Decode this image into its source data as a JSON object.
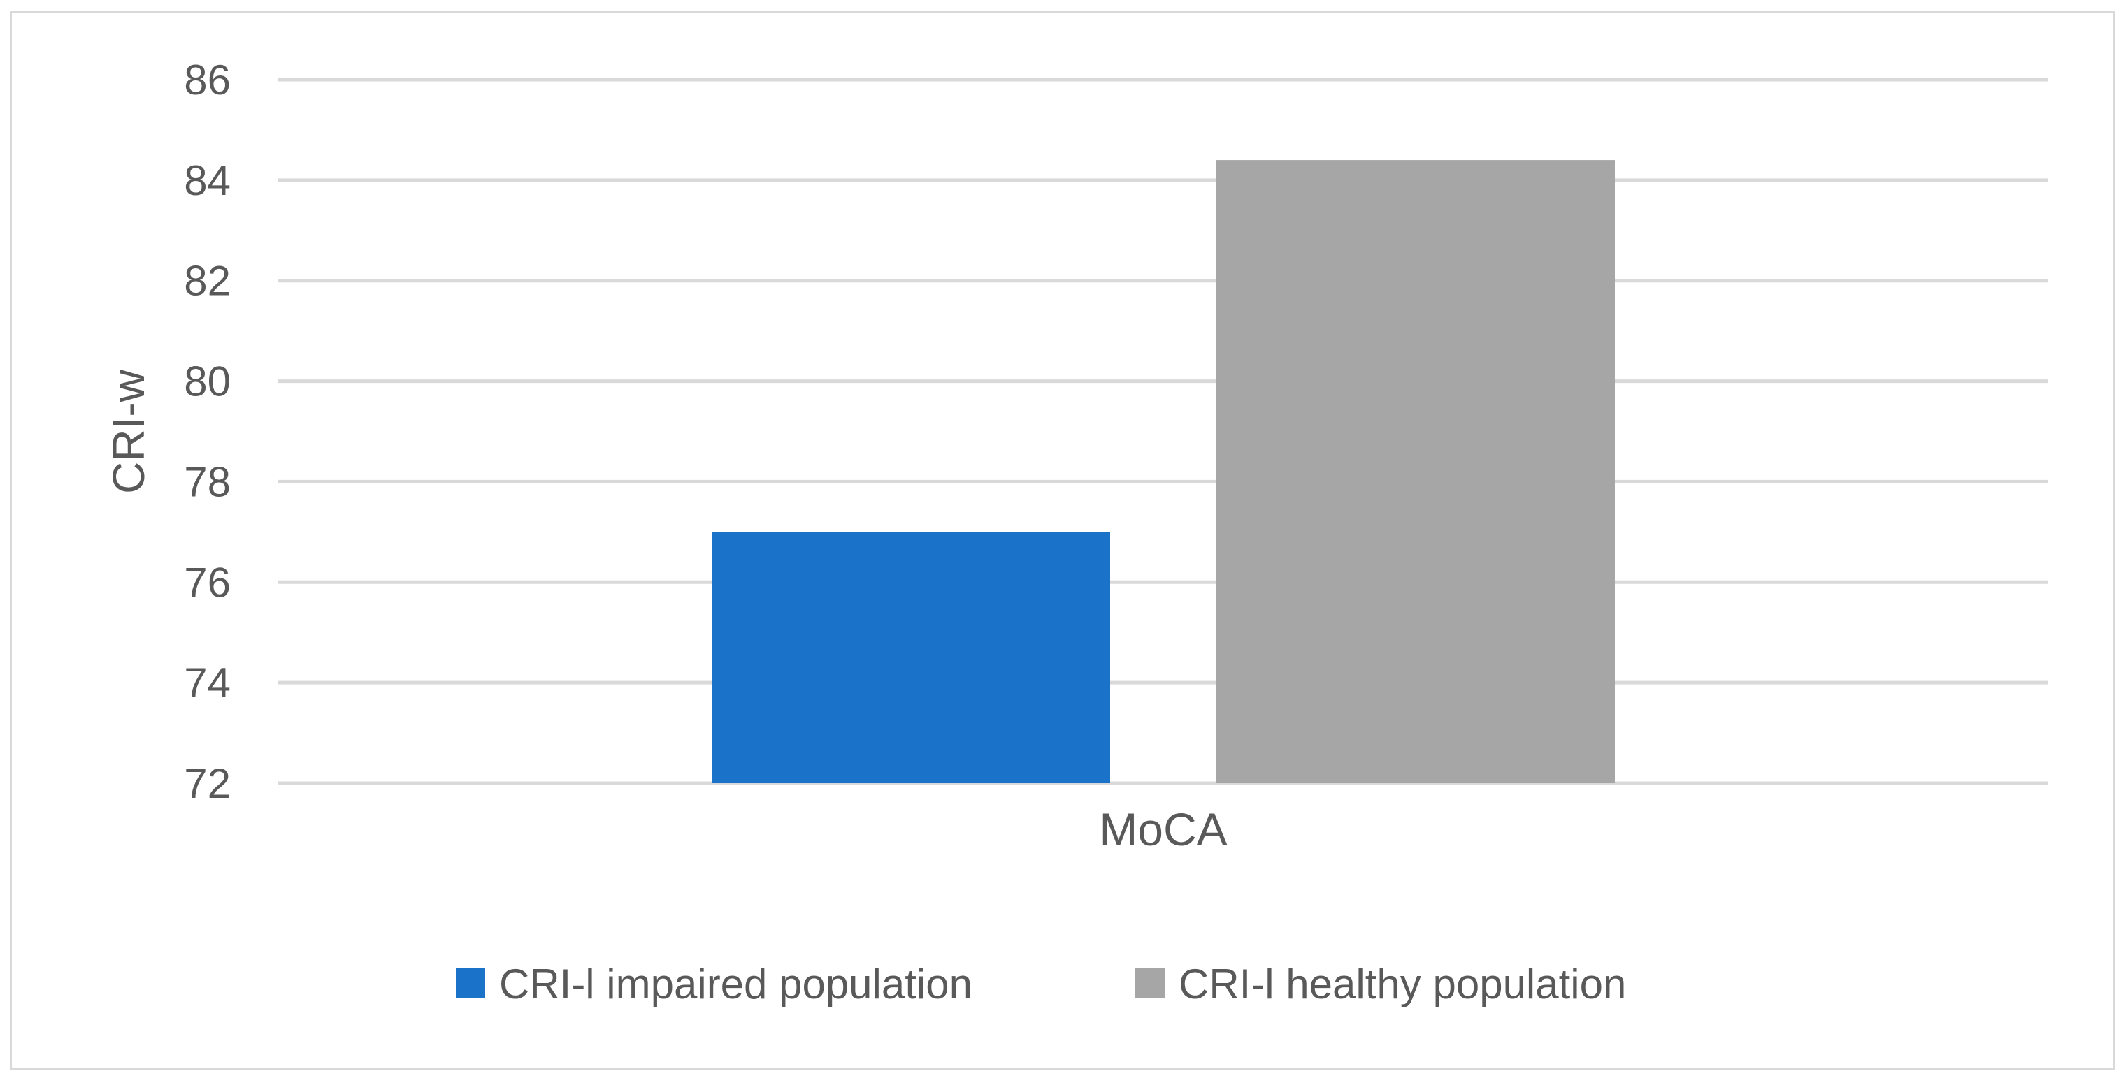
{
  "chart_data": {
    "type": "bar",
    "title": "",
    "xlabel": "",
    "ylabel": "CRI-w",
    "categories": [
      "MoCA"
    ],
    "series": [
      {
        "name": "CRI-l impaired population",
        "values": [
          77.0
        ],
        "color": "#1a73c8"
      },
      {
        "name": "CRI-l healthy population",
        "values": [
          84.4
        ],
        "color": "#a6a6a6"
      }
    ],
    "ylim": [
      72,
      86
    ],
    "yticks": [
      72,
      74,
      76,
      78,
      80,
      82,
      84,
      86
    ],
    "ytick_labels": [
      "72",
      "74",
      "76",
      "78",
      "80",
      "82",
      "84",
      "86"
    ],
    "grid": true,
    "legend": "bottom-center"
  },
  "colors": {
    "gridline": "#d9d9d9",
    "text": "#595959",
    "frame": "#d9d9d9"
  }
}
